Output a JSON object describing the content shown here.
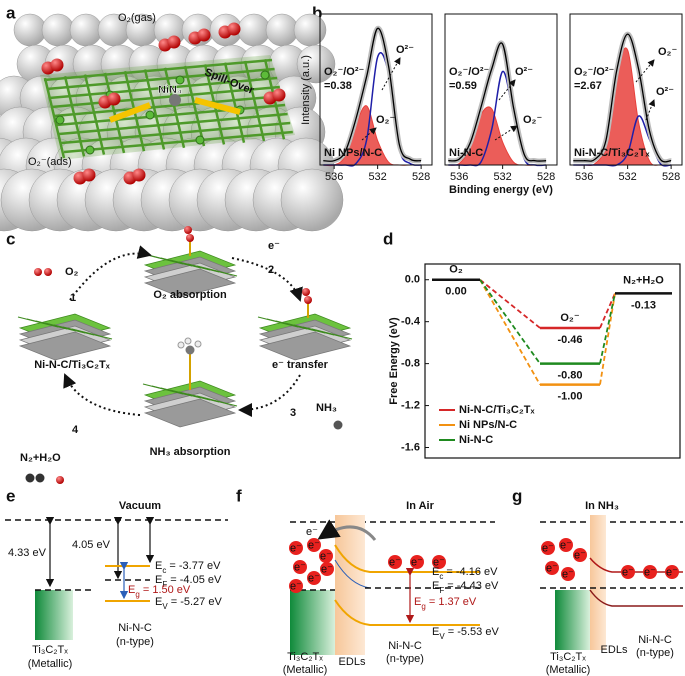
{
  "panel_labels": [
    "a",
    "b",
    "c",
    "d",
    "e",
    "f",
    "g"
  ],
  "panel_a": {
    "gas": "O₂(gas)",
    "site": "NiN₄",
    "spillover": "Spill-Over",
    "ads": "O₂⁻(ads)"
  },
  "chart_data": [
    {
      "type": "line",
      "title": "Ni NPs/N-C",
      "ylabel": "Intensity (a.u.)",
      "ratio_label": "O₂⁻/O²⁻",
      "ratio": "=0.38",
      "peak_labels": [
        "O²⁻",
        "O₂⁻"
      ],
      "x": [
        537,
        536,
        535,
        534,
        533,
        532,
        531,
        530,
        529,
        528
      ],
      "xlim": [
        537.3,
        527
      ],
      "xticks": [
        536,
        532,
        528
      ],
      "ylim": [
        0,
        1.05
      ],
      "series": [
        {
          "color": "#000000",
          "values": [
            0.03,
            0.03,
            0.09,
            0.32,
            0.62,
            0.95,
            0.69,
            0.14,
            0.04,
            0.03
          ]
        },
        {
          "color": "#e8413c",
          "values": [
            0,
            0,
            0.06,
            0.28,
            0.41,
            0.17,
            0.02,
            0,
            0,
            0
          ]
        },
        {
          "color": "#1f1fa8",
          "values": [
            0,
            0,
            0,
            0.01,
            0.18,
            0.75,
            0.64,
            0.11,
            0.01,
            0
          ]
        }
      ]
    },
    {
      "type": "line",
      "title": "Ni-N-C",
      "xlabel": "Binding energy (eV)",
      "ratio_label": "O₂⁻/O²⁻",
      "ratio": "=0.59",
      "peak_labels": [
        "O²⁻",
        "O₂⁻"
      ],
      "x": [
        537,
        536,
        535,
        534,
        533,
        532,
        531,
        530,
        529,
        528
      ],
      "xlim": [
        537.3,
        527
      ],
      "xticks": [
        536,
        532,
        528
      ],
      "ylim": [
        0,
        1.05
      ],
      "series": [
        {
          "color": "#000000",
          "values": [
            0.03,
            0.04,
            0.15,
            0.4,
            0.67,
            0.84,
            0.4,
            0.07,
            0.03,
            0.03
          ]
        },
        {
          "color": "#e8413c",
          "values": [
            0,
            0.01,
            0.12,
            0.35,
            0.39,
            0.16,
            0.02,
            0,
            0,
            0
          ]
        },
        {
          "color": "#1f1fa8",
          "values": [
            0,
            0,
            0,
            0.02,
            0.25,
            0.65,
            0.35,
            0.04,
            0,
            0
          ]
        }
      ]
    },
    {
      "type": "line",
      "title": "Ni-N-C/Ti₃C₂Tₓ",
      "ratio_label": "O₂⁻/O²⁻",
      "ratio": "=2.67",
      "peak_labels": [
        "O₂⁻",
        "O²⁻"
      ],
      "x": [
        537,
        536,
        535,
        534,
        533,
        532,
        531,
        530,
        529,
        528
      ],
      "xlim": [
        537.3,
        527
      ],
      "xticks": [
        536,
        532,
        528
      ],
      "ylim": [
        0,
        1.05
      ],
      "series": [
        {
          "color": "#000000",
          "values": [
            0.03,
            0.03,
            0.04,
            0.17,
            0.66,
            0.91,
            0.67,
            0.24,
            0.04,
            0.03
          ]
        },
        {
          "color": "#e8413c",
          "values": [
            0,
            0,
            0.01,
            0.14,
            0.63,
            0.8,
            0.3,
            0.03,
            0,
            0
          ]
        },
        {
          "color": "#1f1fa8",
          "values": [
            0,
            0,
            0,
            0,
            0,
            0.08,
            0.34,
            0.18,
            0.01,
            0
          ]
        }
      ]
    },
    {
      "type": "energy",
      "ylabel": "Free Energy (eV)",
      "categories": [
        "O₂",
        "O₂⁻",
        "N₂+H₂O"
      ],
      "ylim": [
        -1.7,
        0.15
      ],
      "yticks": [
        {
          "value": 0,
          "label": "0.0"
        },
        -0.4,
        -0.8,
        -1.2,
        -1.6
      ],
      "legend": "lower left",
      "series": [
        {
          "name": "Ni-N-C/Ti₃C₂Tₓ",
          "color": "#d62728",
          "values": [
            0,
            -0.46,
            -0.13
          ],
          "value_labels": [
            "0.00",
            "-0.46",
            "-0.13"
          ]
        },
        {
          "name": "Ni NPs/N-C",
          "color": "#f29111",
          "values": [
            0,
            -1.0,
            -0.13
          ],
          "value_labels": [
            null,
            "-1.00",
            null
          ]
        },
        {
          "name": "Ni-N-C",
          "color": "#1f8a1f",
          "values": [
            0,
            -0.8,
            -0.13
          ],
          "value_labels": [
            null,
            "-0.80",
            null
          ]
        }
      ]
    }
  ],
  "panel_c": {
    "steps": [
      {
        "num": "1",
        "label": "O₂"
      },
      {
        "num": "2",
        "label": "e⁻"
      },
      {
        "num": "3",
        "label": "NH₃"
      },
      {
        "num": "4",
        "label": "N₂+H₂O"
      }
    ],
    "states": [
      "O₂ absorption",
      "e⁻ transfer",
      "NH₃ absorption",
      "Ni-N-C/Ti₃C₂Tₓ"
    ]
  },
  "panel_e": {
    "title": "Vacuum",
    "work_functions": [
      "4.33 eV",
      "4.05 eV"
    ],
    "levels": [
      {
        "sym": "E",
        "sub": "c",
        "text": " = -3.77 eV"
      },
      {
        "sym": "E",
        "sub": "F",
        "text": " = -4.05 eV"
      },
      {
        "sym": "E",
        "sub": "V",
        "text": " = -5.27 eV"
      }
    ],
    "gap": {
      "sym": "E",
      "sub": "g",
      "text": " = 1.50 eV"
    },
    "metal": [
      "Ti₃C₂Tₓ",
      "(Metallic)"
    ],
    "semiconductor": [
      "Ni-N-C",
      "(n-type)"
    ]
  },
  "panel_f": {
    "title": "In Air",
    "electron": "e⁻",
    "transfer": "e⁻",
    "levels": [
      {
        "sym": "E",
        "sub": "c",
        "text": " = -4.16 eV"
      },
      {
        "sym": "E",
        "sub": "F",
        "text": " = -4.43 eV"
      },
      {
        "sym": "E",
        "sub": "V",
        "text": " = -5.53 eV"
      }
    ],
    "gap": {
      "sym": "E",
      "sub": "g",
      "text": " = 1.37 eV"
    },
    "metal": [
      "Ti₃C₂Tₓ",
      "(Metallic)"
    ],
    "layer": "EDLs",
    "semiconductor": [
      "Ni-N-C",
      "(n-type)"
    ]
  },
  "panel_g": {
    "title": "In NH₃",
    "electron": "e⁻",
    "metal": [
      "Ti₃C₂Tₓ",
      "(Metallic)"
    ],
    "layer": "EDLs",
    "semiconductor": [
      "Ni-N-C",
      "(n-type)"
    ]
  }
}
